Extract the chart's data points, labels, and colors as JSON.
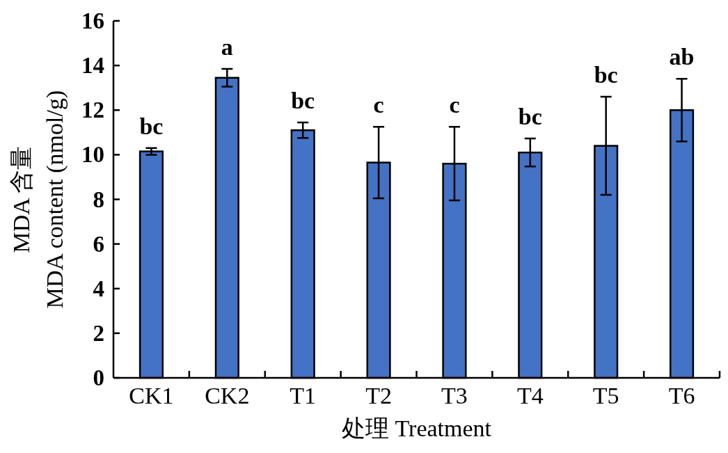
{
  "chart_data": {
    "type": "bar",
    "xlabel": "处理 Treatment",
    "ylabel": "MDA 含量\nMDA content (nmol/g)",
    "categories": [
      "CK1",
      "CK2",
      "T1",
      "T2",
      "T3",
      "T4",
      "T5",
      "T6"
    ],
    "values": [
      10.15,
      13.45,
      11.1,
      9.65,
      9.6,
      10.1,
      10.4,
      12.0
    ],
    "errors": [
      0.15,
      0.4,
      0.35,
      1.6,
      1.65,
      0.63,
      2.2,
      1.4
    ],
    "color": "#4472c4",
    "ylim": [
      0,
      16
    ],
    "yticks": [
      0,
      2,
      4,
      6,
      8,
      10,
      12,
      14,
      16
    ],
    "annotations": [
      {
        "text": "bc",
        "x": "CK1",
        "y": 10.3
      },
      {
        "text": "a",
        "x": "CK2",
        "y": 13.85
      },
      {
        "text": "bc",
        "x": "T1",
        "y": 11.45
      },
      {
        "text": "c",
        "x": "T2",
        "y": 11.25
      },
      {
        "text": "c",
        "x": "T3",
        "y": 11.25
      },
      {
        "text": "bc",
        "x": "T4",
        "y": 10.73
      },
      {
        "text": "bc",
        "x": "T5",
        "y": 12.6
      },
      {
        "text": "ab",
        "x": "T6",
        "y": 13.4
      }
    ]
  }
}
